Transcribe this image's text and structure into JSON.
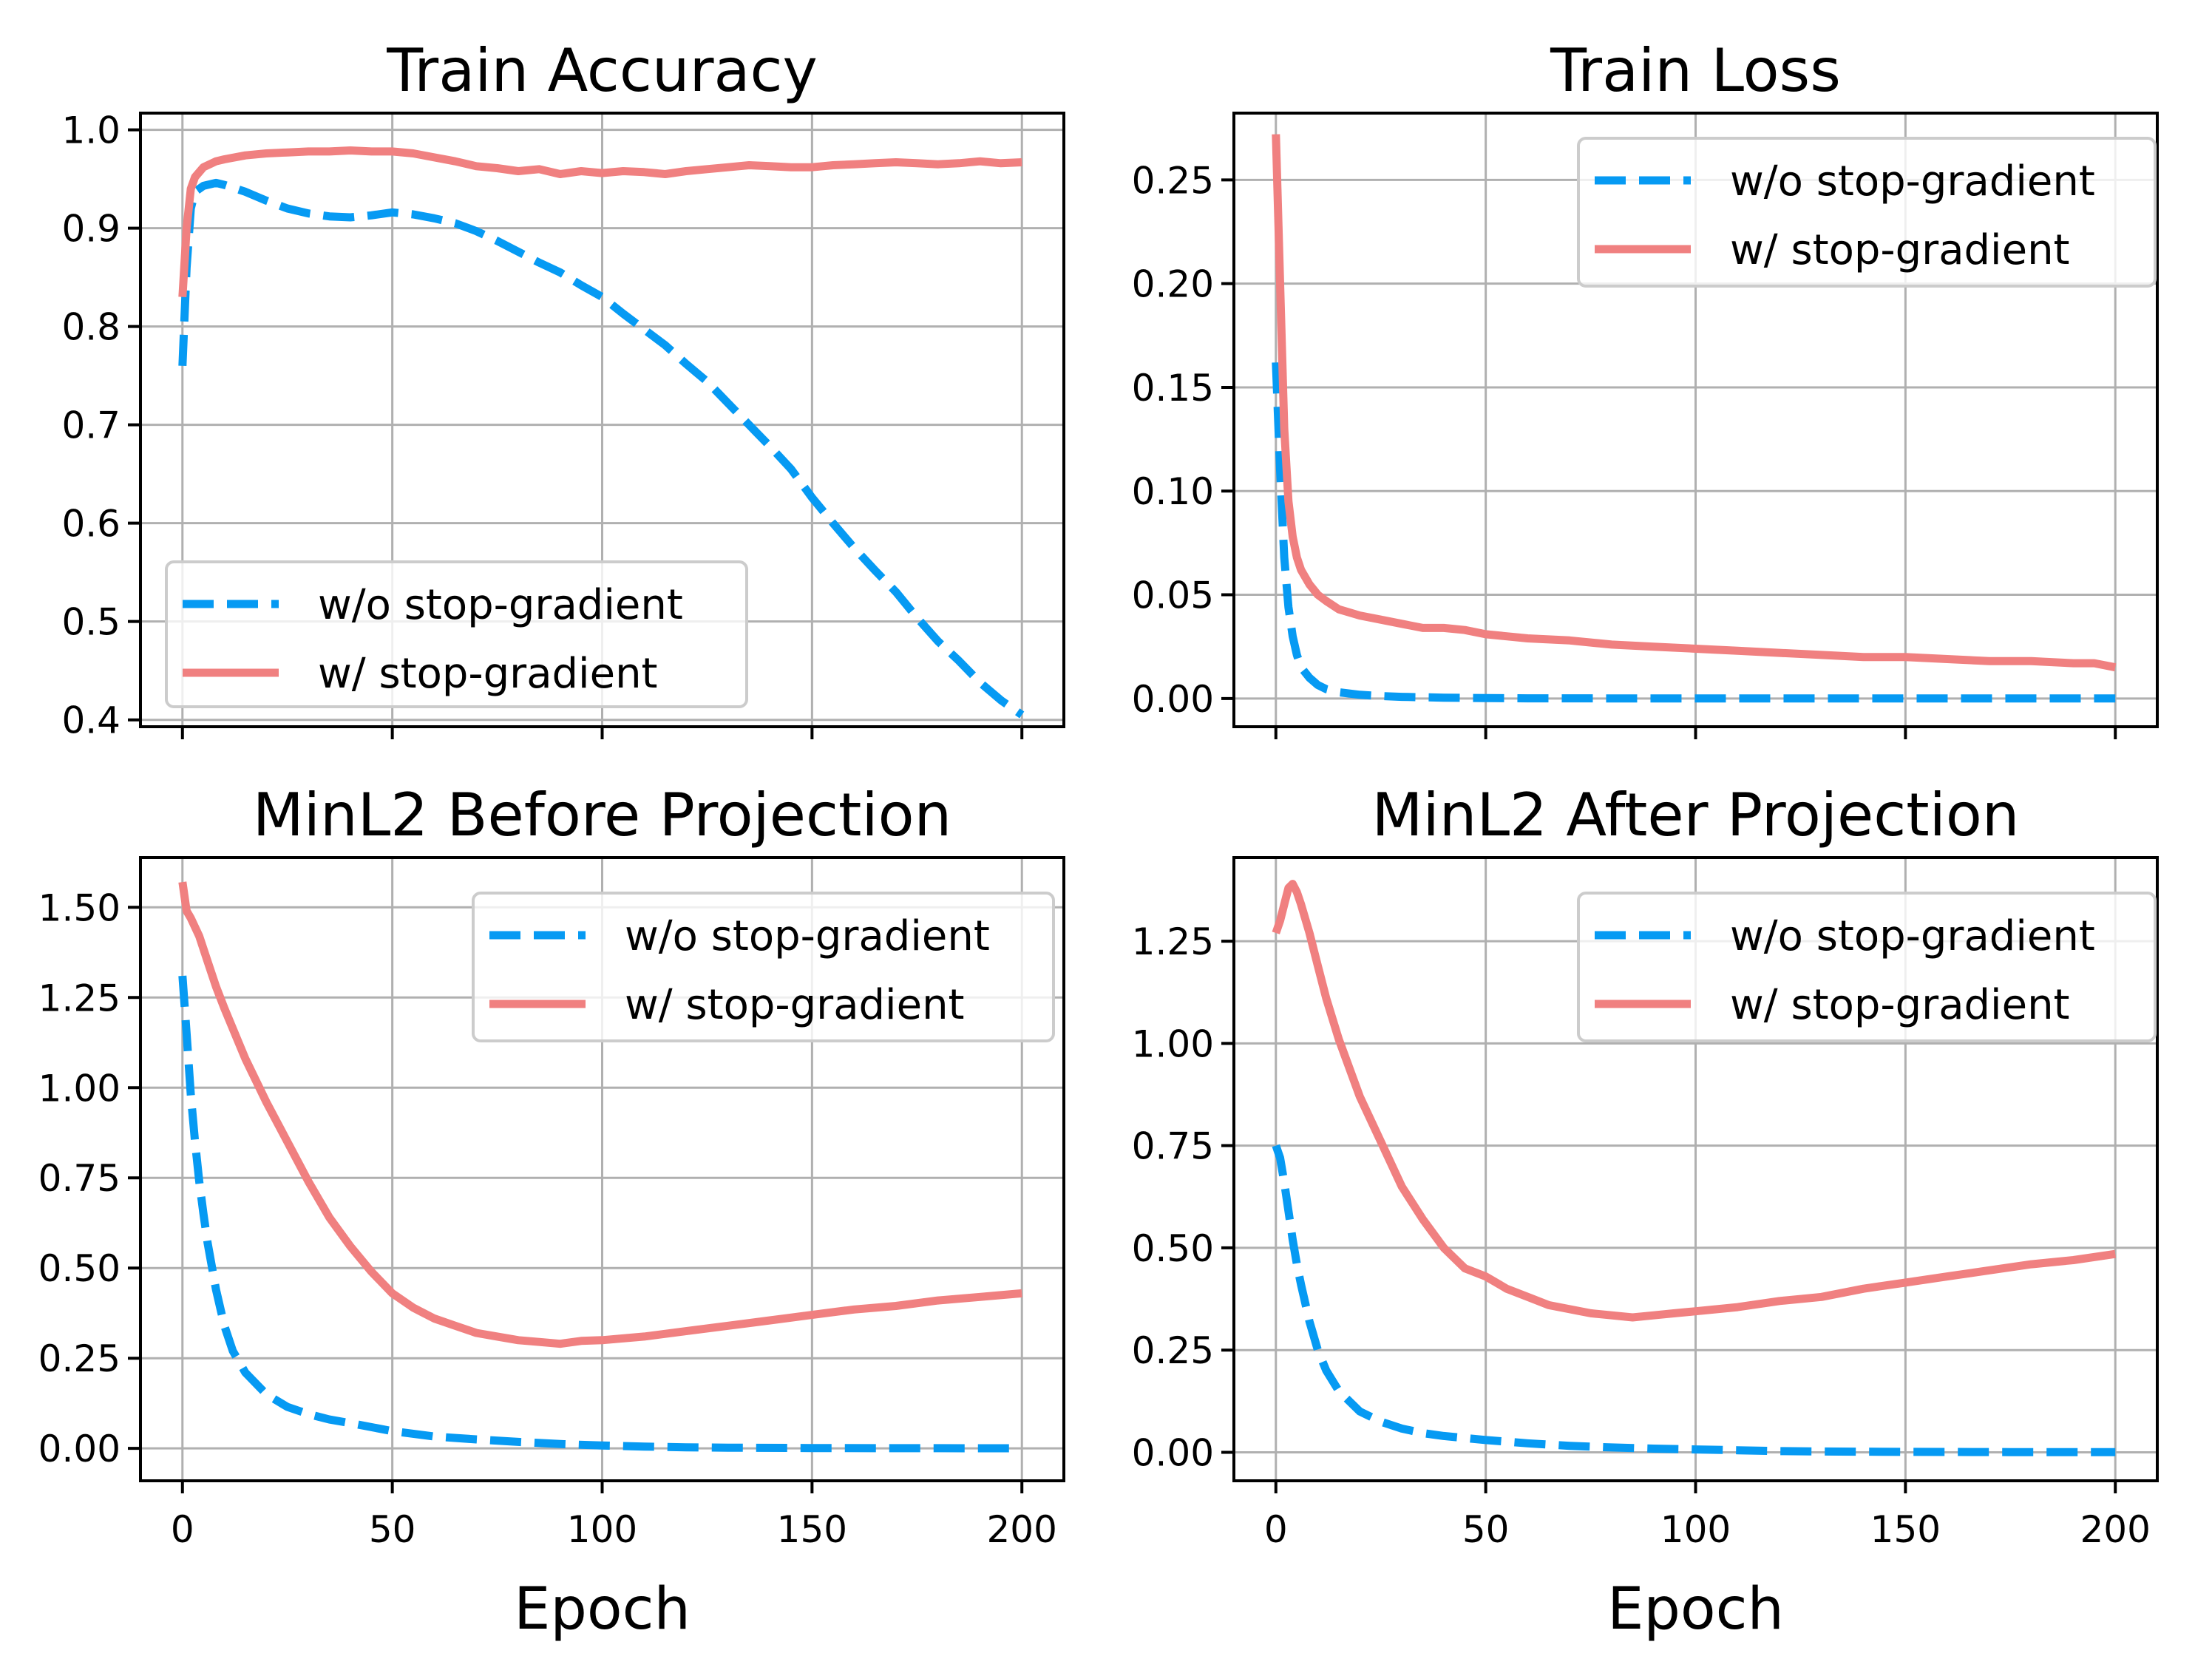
{
  "figure": {
    "colors": {
      "without_sg": "#069AF3",
      "with_sg": "#F08080",
      "grid": "#b0b0b0",
      "axes": "#000000"
    }
  },
  "chart_data": [
    {
      "type": "line",
      "title": "Train Accuracy",
      "xlabel": "",
      "ylabel": "",
      "xlim": [
        -10,
        210
      ],
      "ylim": [
        0.393,
        1.017
      ],
      "xticks": [
        0,
        50,
        100,
        150,
        200
      ],
      "xtick_labels": [
        "",
        "",
        "",
        "",
        ""
      ],
      "yticks": [
        0.4,
        0.5,
        0.6,
        0.7,
        0.8,
        0.9,
        1.0
      ],
      "ytick_labels": [
        "0.4",
        "0.5",
        "0.6",
        "0.7",
        "0.8",
        "0.9",
        "1.0"
      ],
      "grid": true,
      "legend": "lower-left",
      "series": [
        {
          "name": "w/o stop-gradient",
          "style": "dashed",
          "x": [
            0,
            1,
            2,
            3,
            5,
            8,
            10,
            15,
            20,
            25,
            30,
            35,
            40,
            45,
            50,
            55,
            60,
            65,
            70,
            75,
            80,
            85,
            90,
            95,
            100,
            105,
            110,
            115,
            120,
            125,
            130,
            135,
            140,
            145,
            150,
            155,
            160,
            165,
            170,
            175,
            180,
            185,
            190,
            195,
            200
          ],
          "y": [
            0.76,
            0.86,
            0.92,
            0.937,
            0.943,
            0.946,
            0.944,
            0.937,
            0.928,
            0.92,
            0.915,
            0.912,
            0.911,
            0.913,
            0.916,
            0.914,
            0.91,
            0.905,
            0.897,
            0.887,
            0.876,
            0.865,
            0.855,
            0.842,
            0.83,
            0.813,
            0.797,
            0.781,
            0.762,
            0.744,
            0.722,
            0.7,
            0.678,
            0.655,
            0.626,
            0.6,
            0.575,
            0.552,
            0.53,
            0.504,
            0.48,
            0.46,
            0.438,
            0.42,
            0.405
          ]
        },
        {
          "name": "w/ stop-gradient",
          "style": "solid",
          "x": [
            0,
            1,
            2,
            3,
            5,
            8,
            10,
            15,
            20,
            25,
            30,
            35,
            40,
            45,
            50,
            55,
            60,
            65,
            70,
            75,
            80,
            85,
            90,
            95,
            100,
            105,
            110,
            115,
            120,
            125,
            130,
            135,
            140,
            145,
            150,
            155,
            160,
            165,
            170,
            175,
            180,
            185,
            190,
            195,
            200
          ],
          "y": [
            0.83,
            0.9,
            0.94,
            0.952,
            0.962,
            0.968,
            0.97,
            0.974,
            0.976,
            0.977,
            0.978,
            0.978,
            0.979,
            0.978,
            0.978,
            0.976,
            0.972,
            0.968,
            0.963,
            0.961,
            0.958,
            0.96,
            0.955,
            0.958,
            0.956,
            0.958,
            0.957,
            0.955,
            0.958,
            0.96,
            0.962,
            0.964,
            0.963,
            0.962,
            0.962,
            0.964,
            0.965,
            0.966,
            0.967,
            0.966,
            0.965,
            0.966,
            0.968,
            0.966,
            0.967
          ]
        }
      ]
    },
    {
      "type": "line",
      "title": "Train Loss",
      "xlabel": "",
      "ylabel": "",
      "xlim": [
        -10,
        210
      ],
      "ylim": [
        -0.0136,
        0.2822
      ],
      "xticks": [
        0,
        50,
        100,
        150,
        200
      ],
      "xtick_labels": [
        "",
        "",
        "",
        "",
        ""
      ],
      "yticks": [
        0.0,
        0.05,
        0.1,
        0.15,
        0.2,
        0.25
      ],
      "ytick_labels": [
        "0.00",
        "0.05",
        "0.10",
        "0.15",
        "0.20",
        "0.25"
      ],
      "grid": true,
      "legend": "upper-right",
      "series": [
        {
          "name": "w/o stop-gradient",
          "style": "dashed",
          "x": [
            0,
            1,
            2,
            3,
            4,
            5,
            6,
            8,
            10,
            12,
            15,
            20,
            25,
            30,
            40,
            50,
            60,
            80,
            100,
            120,
            150,
            175,
            200
          ],
          "y": [
            0.162,
            0.11,
            0.068,
            0.044,
            0.03,
            0.021,
            0.015,
            0.01,
            0.0065,
            0.0045,
            0.003,
            0.0018,
            0.0012,
            0.0008,
            0.0004,
            0.0002,
            0.0001,
            5e-05,
            3e-05,
            2e-05,
            1e-05,
            1e-05,
            1e-05
          ]
        },
        {
          "name": "w/ stop-gradient",
          "style": "solid",
          "x": [
            0,
            1,
            2,
            3,
            4,
            5,
            6,
            8,
            10,
            12,
            15,
            20,
            25,
            30,
            35,
            40,
            45,
            50,
            60,
            70,
            80,
            90,
            100,
            110,
            120,
            130,
            140,
            150,
            160,
            170,
            180,
            190,
            195,
            200
          ],
          "y": [
            0.272,
            0.2,
            0.13,
            0.095,
            0.078,
            0.068,
            0.062,
            0.055,
            0.05,
            0.047,
            0.043,
            0.04,
            0.038,
            0.036,
            0.034,
            0.034,
            0.033,
            0.031,
            0.029,
            0.028,
            0.026,
            0.025,
            0.024,
            0.023,
            0.022,
            0.021,
            0.02,
            0.02,
            0.019,
            0.018,
            0.018,
            0.017,
            0.017,
            0.015
          ]
        }
      ]
    },
    {
      "type": "line",
      "title": "MinL2 Before Projection",
      "xlabel": "Epoch",
      "ylabel": "",
      "xlim": [
        -10,
        210
      ],
      "ylim": [
        -0.0898,
        1.6379
      ],
      "xticks": [
        0,
        50,
        100,
        150,
        200
      ],
      "xtick_labels": [
        "0",
        "50",
        "100",
        "150",
        "200"
      ],
      "yticks": [
        0.0,
        0.25,
        0.5,
        0.75,
        1.0,
        1.25,
        1.5
      ],
      "ytick_labels": [
        "0.00",
        "0.25",
        "0.50",
        "0.75",
        "1.00",
        "1.25",
        "1.50"
      ],
      "grid": true,
      "legend": "upper-right",
      "series": [
        {
          "name": "w/o stop-gradient",
          "style": "dashed",
          "x": [
            0,
            1,
            2,
            3,
            4,
            5,
            6,
            8,
            10,
            12,
            15,
            20,
            25,
            30,
            35,
            40,
            50,
            60,
            70,
            80,
            90,
            100,
            110,
            120,
            130,
            150,
            175,
            200
          ],
          "y": [
            1.31,
            1.15,
            0.98,
            0.85,
            0.74,
            0.65,
            0.57,
            0.44,
            0.34,
            0.27,
            0.21,
            0.15,
            0.115,
            0.095,
            0.08,
            0.07,
            0.048,
            0.033,
            0.025,
            0.018,
            0.012,
            0.008,
            0.005,
            0.003,
            0.002,
            0.001,
            0.0005,
            0.0003
          ]
        },
        {
          "name": "w/ stop-gradient",
          "style": "solid",
          "x": [
            0,
            1,
            2,
            4,
            6,
            8,
            10,
            15,
            20,
            25,
            30,
            35,
            40,
            45,
            50,
            55,
            60,
            65,
            70,
            75,
            80,
            85,
            90,
            95,
            100,
            110,
            120,
            130,
            140,
            150,
            160,
            170,
            180,
            190,
            200
          ],
          "y": [
            1.57,
            1.49,
            1.47,
            1.42,
            1.35,
            1.28,
            1.22,
            1.08,
            0.96,
            0.85,
            0.74,
            0.64,
            0.56,
            0.49,
            0.43,
            0.39,
            0.36,
            0.34,
            0.32,
            0.31,
            0.3,
            0.295,
            0.29,
            0.298,
            0.3,
            0.31,
            0.325,
            0.34,
            0.355,
            0.37,
            0.385,
            0.395,
            0.41,
            0.42,
            0.43
          ]
        }
      ]
    },
    {
      "type": "line",
      "title": "MinL2 After Projection",
      "xlabel": "Epoch",
      "ylabel": "",
      "xlim": [
        -10,
        210
      ],
      "ylim": [
        -0.0696,
        1.4544
      ],
      "xticks": [
        0,
        50,
        100,
        150,
        200
      ],
      "xtick_labels": [
        "0",
        "50",
        "100",
        "150",
        "200"
      ],
      "yticks": [
        0.0,
        0.25,
        0.5,
        0.75,
        1.0,
        1.25
      ],
      "ytick_labels": [
        "0.00",
        "0.25",
        "0.50",
        "0.75",
        "1.00",
        "1.25"
      ],
      "grid": true,
      "legend": "upper-right",
      "series": [
        {
          "name": "w/o stop-gradient",
          "style": "dashed",
          "x": [
            0,
            1,
            2,
            3,
            4,
            5,
            6,
            8,
            10,
            12,
            15,
            20,
            25,
            30,
            35,
            40,
            50,
            60,
            70,
            80,
            90,
            100,
            110,
            120,
            130,
            150,
            175,
            200
          ],
          "y": [
            0.75,
            0.72,
            0.66,
            0.59,
            0.52,
            0.46,
            0.41,
            0.32,
            0.25,
            0.2,
            0.15,
            0.1,
            0.075,
            0.058,
            0.047,
            0.04,
            0.03,
            0.022,
            0.016,
            0.012,
            0.009,
            0.007,
            0.005,
            0.003,
            0.002,
            0.001,
            0.0005,
            0.0003
          ]
        },
        {
          "name": "w/ stop-gradient",
          "style": "solid",
          "x": [
            0,
            1,
            2,
            3,
            4,
            5,
            6,
            8,
            10,
            12,
            15,
            20,
            25,
            30,
            35,
            40,
            45,
            50,
            55,
            60,
            65,
            70,
            75,
            80,
            85,
            90,
            95,
            100,
            110,
            120,
            130,
            140,
            150,
            160,
            170,
            180,
            190,
            200
          ],
          "y": [
            1.27,
            1.3,
            1.34,
            1.38,
            1.39,
            1.37,
            1.34,
            1.27,
            1.19,
            1.11,
            1.01,
            0.87,
            0.76,
            0.65,
            0.57,
            0.5,
            0.45,
            0.43,
            0.4,
            0.38,
            0.36,
            0.35,
            0.34,
            0.335,
            0.33,
            0.335,
            0.34,
            0.345,
            0.355,
            0.37,
            0.38,
            0.4,
            0.415,
            0.43,
            0.445,
            0.46,
            0.47,
            0.485
          ]
        }
      ]
    }
  ]
}
